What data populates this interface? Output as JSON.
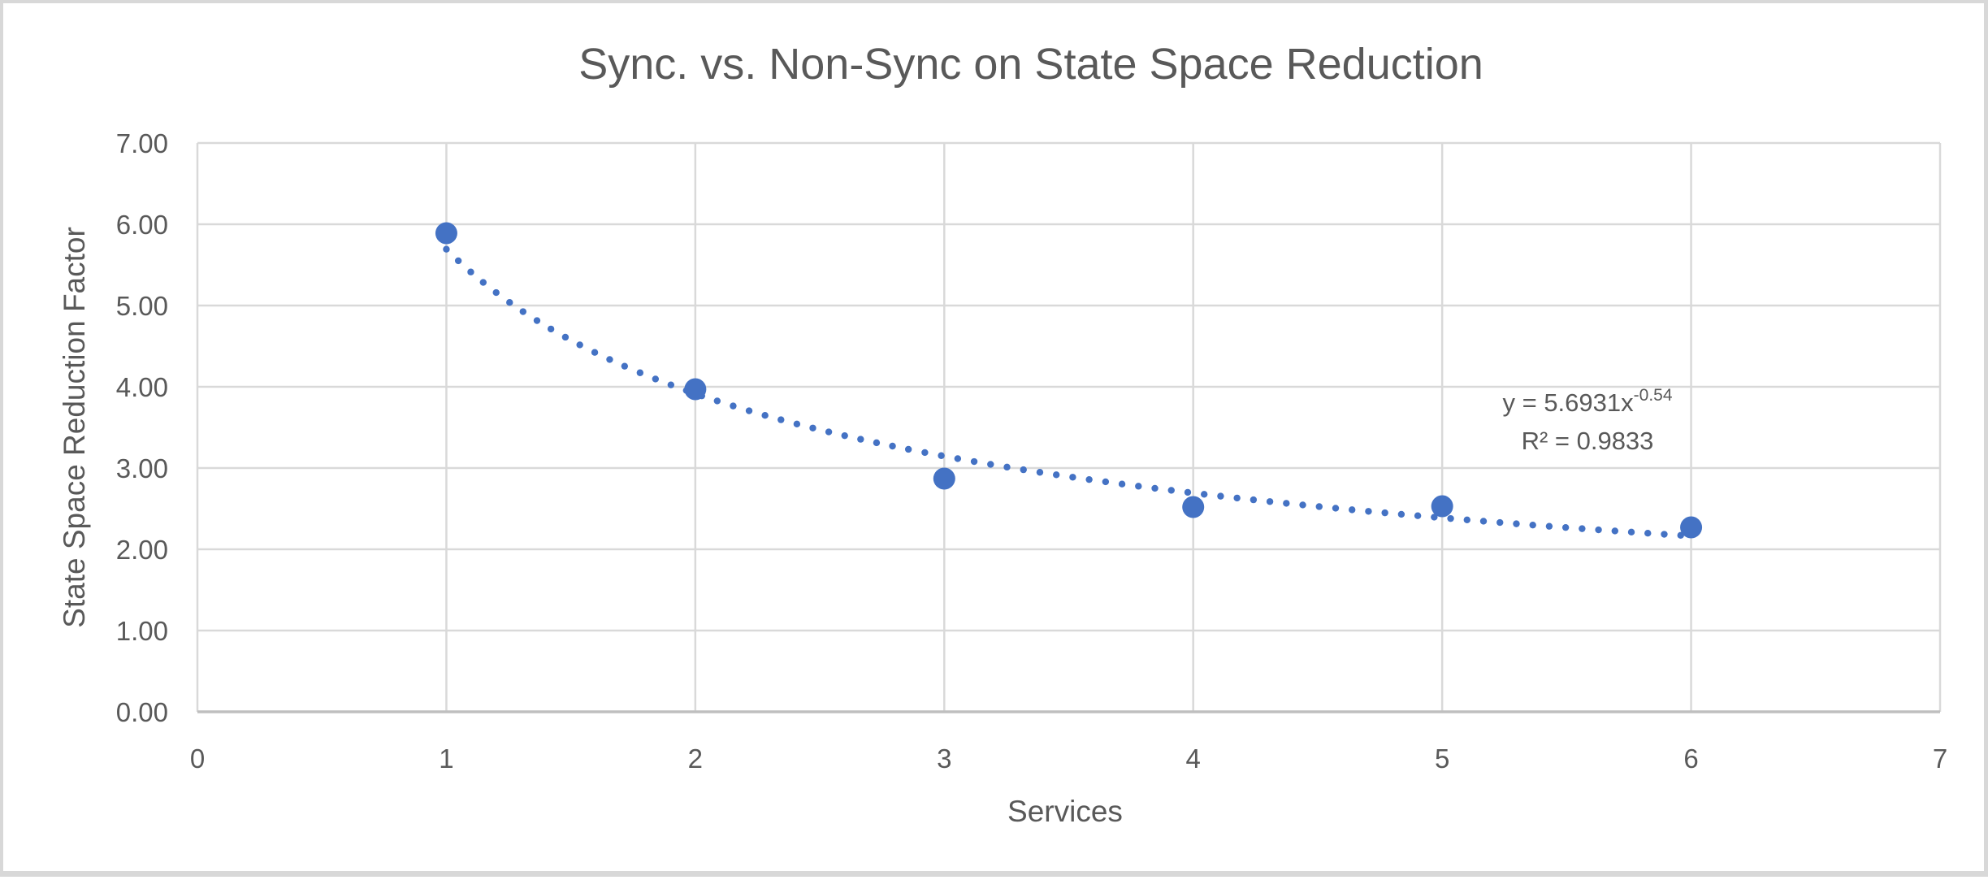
{
  "chart_data": {
    "type": "scatter",
    "title": "Sync. vs. Non-Sync on State Space Reduction",
    "xlabel": "Services",
    "ylabel": "State Space Reduction Factor",
    "xlim": [
      0,
      7
    ],
    "ylim": [
      0,
      7
    ],
    "grid": true,
    "legend_position": "none",
    "x_ticks": [
      0,
      1,
      2,
      3,
      4,
      5,
      6,
      7
    ],
    "y_ticks": [
      "0.00",
      "1.00",
      "2.00",
      "3.00",
      "4.00",
      "5.00",
      "6.00",
      "7.00"
    ],
    "series": [
      {
        "name": "State Space Reduction Factor",
        "x": [
          1,
          2,
          3,
          4,
          5,
          6
        ],
        "y": [
          5.89,
          3.97,
          2.87,
          2.52,
          2.53,
          2.27
        ]
      }
    ],
    "trendline": {
      "type": "power",
      "coefficient": 5.6931,
      "exponent": -0.54,
      "x_range": [
        1,
        6
      ],
      "equation_base": "y = 5.6931x",
      "equation_exponent": "-0.54",
      "r_squared_text": "R² = 0.9833"
    },
    "colors": {
      "marker": "#4472C4",
      "trendline": "#4472C4",
      "gridline": "#D9D9D9",
      "axis_line": "#BFBFBF",
      "text": "#595959"
    }
  }
}
